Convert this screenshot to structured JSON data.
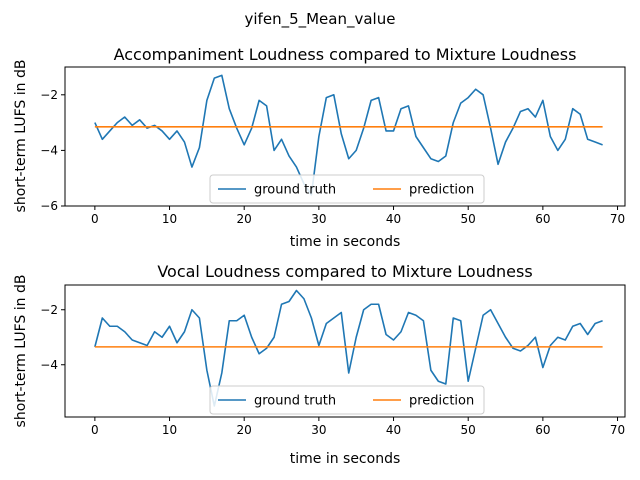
{
  "figure": {
    "suptitle": "yifen_5_Mean_value"
  },
  "colors": {
    "ground_truth": "#1f77b4",
    "prediction": "#ff7f0e",
    "axes": "#000000",
    "background": "#ffffff"
  },
  "chart_data": [
    {
      "type": "line",
      "title": "Accompaniment Loudness compared to Mixture Loudness",
      "xlabel": "time in seconds",
      "ylabel": "short-term LUFS in dB",
      "xlim": [
        -4,
        71
      ],
      "ylim": [
        -6,
        -1.0
      ],
      "xticks": [
        0,
        10,
        20,
        30,
        40,
        50,
        60,
        70
      ],
      "yticks": [
        -6,
        -4,
        -2
      ],
      "grid": false,
      "legend": {
        "placement": "lower-center",
        "ncol": 2
      },
      "series": [
        {
          "name": "ground truth",
          "x": [
            0,
            1,
            2,
            3,
            4,
            5,
            6,
            7,
            8,
            9,
            10,
            11,
            12,
            13,
            14,
            15,
            16,
            17,
            18,
            19,
            20,
            21,
            22,
            23,
            24,
            25,
            26,
            27,
            28,
            29,
            30,
            31,
            32,
            33,
            34,
            35,
            36,
            37,
            38,
            39,
            40,
            41,
            42,
            43,
            44,
            45,
            46,
            47,
            48,
            49,
            50,
            51,
            52,
            53,
            54,
            55,
            56,
            57,
            58,
            59,
            60,
            61,
            62,
            63,
            64,
            65,
            66,
            67,
            68
          ],
          "y": [
            -3.0,
            -3.6,
            -3.3,
            -3.0,
            -2.8,
            -3.1,
            -2.9,
            -3.2,
            -3.1,
            -3.3,
            -3.6,
            -3.3,
            -3.7,
            -4.6,
            -3.9,
            -2.2,
            -1.4,
            -1.3,
            -2.5,
            -3.2,
            -3.8,
            -3.2,
            -2.2,
            -2.4,
            -4.0,
            -3.6,
            -4.2,
            -4.6,
            -5.2,
            -5.6,
            -3.5,
            -2.1,
            -2.0,
            -3.4,
            -4.3,
            -4.0,
            -3.2,
            -2.2,
            -2.1,
            -3.3,
            -3.3,
            -2.5,
            -2.4,
            -3.5,
            -3.9,
            -4.3,
            -4.4,
            -4.2,
            -3.0,
            -2.3,
            -2.1,
            -1.8,
            -2.0,
            -3.2,
            -4.5,
            -3.7,
            -3.2,
            -2.6,
            -2.5,
            -2.8,
            -2.2,
            -3.5,
            -4.0,
            -3.6,
            -2.5,
            -2.7,
            -3.6,
            -3.7,
            -3.8
          ]
        },
        {
          "name": "prediction",
          "x": [
            0,
            68
          ],
          "y": [
            -3.15,
            -3.15
          ]
        }
      ]
    },
    {
      "type": "line",
      "title": "Vocal Loudness compared to Mixture Loudness",
      "xlabel": "time in seconds",
      "ylabel": "short-term LUFS in dB",
      "xlim": [
        -4,
        71
      ],
      "ylim": [
        -5.9,
        -1.1
      ],
      "xticks": [
        0,
        10,
        20,
        30,
        40,
        50,
        60,
        70
      ],
      "yticks": [
        -4,
        -2
      ],
      "grid": false,
      "legend": {
        "placement": "lower-center",
        "ncol": 2
      },
      "series": [
        {
          "name": "ground truth",
          "x": [
            0,
            1,
            2,
            3,
            4,
            5,
            6,
            7,
            8,
            9,
            10,
            11,
            12,
            13,
            14,
            15,
            16,
            17,
            18,
            19,
            20,
            21,
            22,
            23,
            24,
            25,
            26,
            27,
            28,
            29,
            30,
            31,
            32,
            33,
            34,
            35,
            36,
            37,
            38,
            39,
            40,
            41,
            42,
            43,
            44,
            45,
            46,
            47,
            48,
            49,
            50,
            51,
            52,
            53,
            54,
            55,
            56,
            57,
            58,
            59,
            60,
            61,
            62,
            63,
            64,
            65,
            66,
            67,
            68
          ],
          "y": [
            -3.35,
            -2.3,
            -2.6,
            -2.6,
            -2.8,
            -3.1,
            -3.2,
            -3.3,
            -2.8,
            -3.0,
            -2.6,
            -3.2,
            -2.8,
            -2.0,
            -2.3,
            -4.2,
            -5.5,
            -4.3,
            -2.4,
            -2.4,
            -2.2,
            -3.0,
            -3.6,
            -3.4,
            -3.0,
            -1.8,
            -1.7,
            -1.3,
            -1.6,
            -2.3,
            -3.3,
            -2.5,
            -2.3,
            -2.1,
            -4.3,
            -3.0,
            -2.0,
            -1.8,
            -1.8,
            -2.9,
            -3.1,
            -2.8,
            -2.1,
            -2.2,
            -2.4,
            -4.2,
            -4.6,
            -4.7,
            -2.3,
            -2.4,
            -4.6,
            -3.4,
            -2.2,
            -2.0,
            -2.5,
            -3.0,
            -3.4,
            -3.5,
            -3.3,
            -3.0,
            -4.1,
            -3.3,
            -3.0,
            -3.1,
            -2.6,
            -2.5,
            -2.9,
            -2.5,
            -2.4
          ]
        },
        {
          "name": "prediction",
          "x": [
            0,
            68
          ],
          "y": [
            -3.35,
            -3.35
          ]
        }
      ]
    }
  ]
}
